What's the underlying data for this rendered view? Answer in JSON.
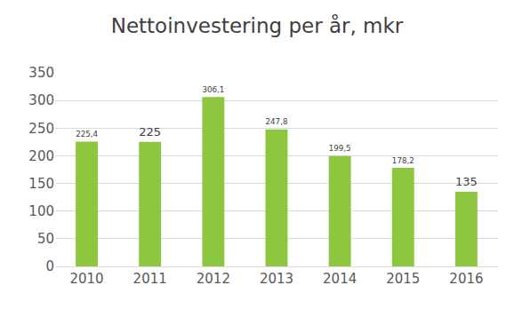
{
  "chart_data": {
    "type": "bar",
    "title": "Nettoinvestering per år, mkr",
    "categories": [
      "2010",
      "2011",
      "2012",
      "2013",
      "2014",
      "2015",
      "2016"
    ],
    "values": [
      225.4,
      225,
      306.1,
      247.8,
      199.5,
      178.2,
      135
    ],
    "value_labels": [
      "225,4",
      "225",
      "306,1",
      "247,8",
      "199,5",
      "178,2",
      "135"
    ],
    "data_labels": true,
    "color": "#8dc63f",
    "ylim": [
      0,
      350
    ],
    "yticks": [
      0,
      50,
      100,
      150,
      200,
      250,
      300,
      350
    ],
    "grid": true
  }
}
